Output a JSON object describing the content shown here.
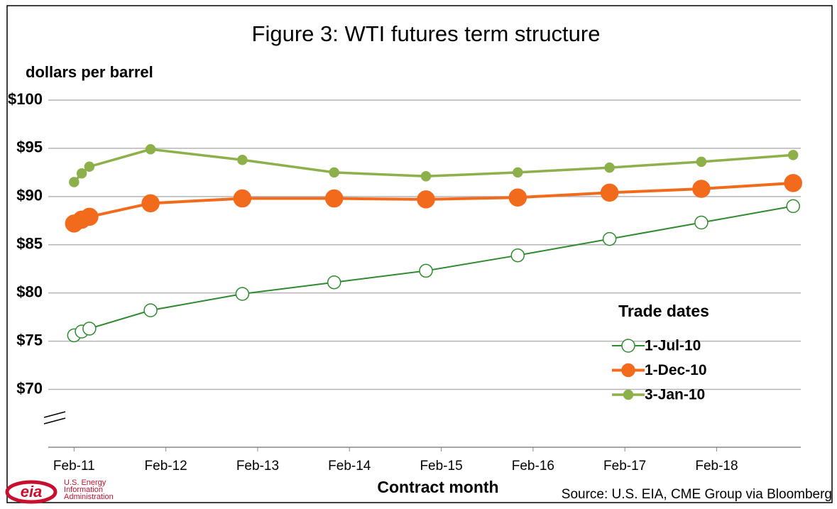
{
  "chart_data": {
    "type": "line",
    "title": "Figure 3: WTI futures term structure",
    "y_label": "dollars per barrel",
    "x_label": "Contract month",
    "source": "Source: U.S. EIA, CME Group via Bloomberg",
    "logo": {
      "mark": "eia",
      "lines": [
        "U.S. Energy",
        "Information",
        "Administration"
      ]
    },
    "legend_title": "Trade dates",
    "x": [
      "Feb-11",
      "Mar-11",
      "Apr-11",
      "Dec-11",
      "Dec-12",
      "Dec-13",
      "Dec-14",
      "Dec-15",
      "Dec-16",
      "Dec-17",
      "Dec-18"
    ],
    "xlim": [
      "Nov-10",
      "Jan-19"
    ],
    "xticks": [
      "Feb-11",
      "Feb-12",
      "Feb-13",
      "Feb-14",
      "Feb-15",
      "Feb-16",
      "Feb-17",
      "Feb-18"
    ],
    "ylim": [
      64,
      100
    ],
    "yticks": [
      {
        "value": 70,
        "label": "$70"
      },
      {
        "value": 75,
        "label": "$75"
      },
      {
        "value": 80,
        "label": "$80"
      },
      {
        "value": 85,
        "label": "$85"
      },
      {
        "value": 90,
        "label": "$90"
      },
      {
        "value": 95,
        "label": "$95"
      },
      {
        "value": 100,
        "label": "$100"
      }
    ],
    "grid": true,
    "series": [
      {
        "name": "1-Jul-10",
        "color": "#2e8b2e",
        "marker": "open",
        "values": [
          75.6,
          76.0,
          76.3,
          78.2,
          79.9,
          81.1,
          82.3,
          83.9,
          85.6,
          87.3,
          89.0
        ]
      },
      {
        "name": "1-Dec-10",
        "color": "#f26b1d",
        "marker": "large",
        "values": [
          87.2,
          87.6,
          87.9,
          89.3,
          89.8,
          89.8,
          89.7,
          89.9,
          90.4,
          90.8,
          91.4
        ]
      },
      {
        "name": "3-Jan-10",
        "color": "#8db04a",
        "marker": "small",
        "values": [
          91.5,
          92.4,
          93.1,
          94.9,
          93.8,
          92.5,
          92.1,
          92.5,
          93.0,
          93.6,
          94.3
        ]
      }
    ]
  }
}
